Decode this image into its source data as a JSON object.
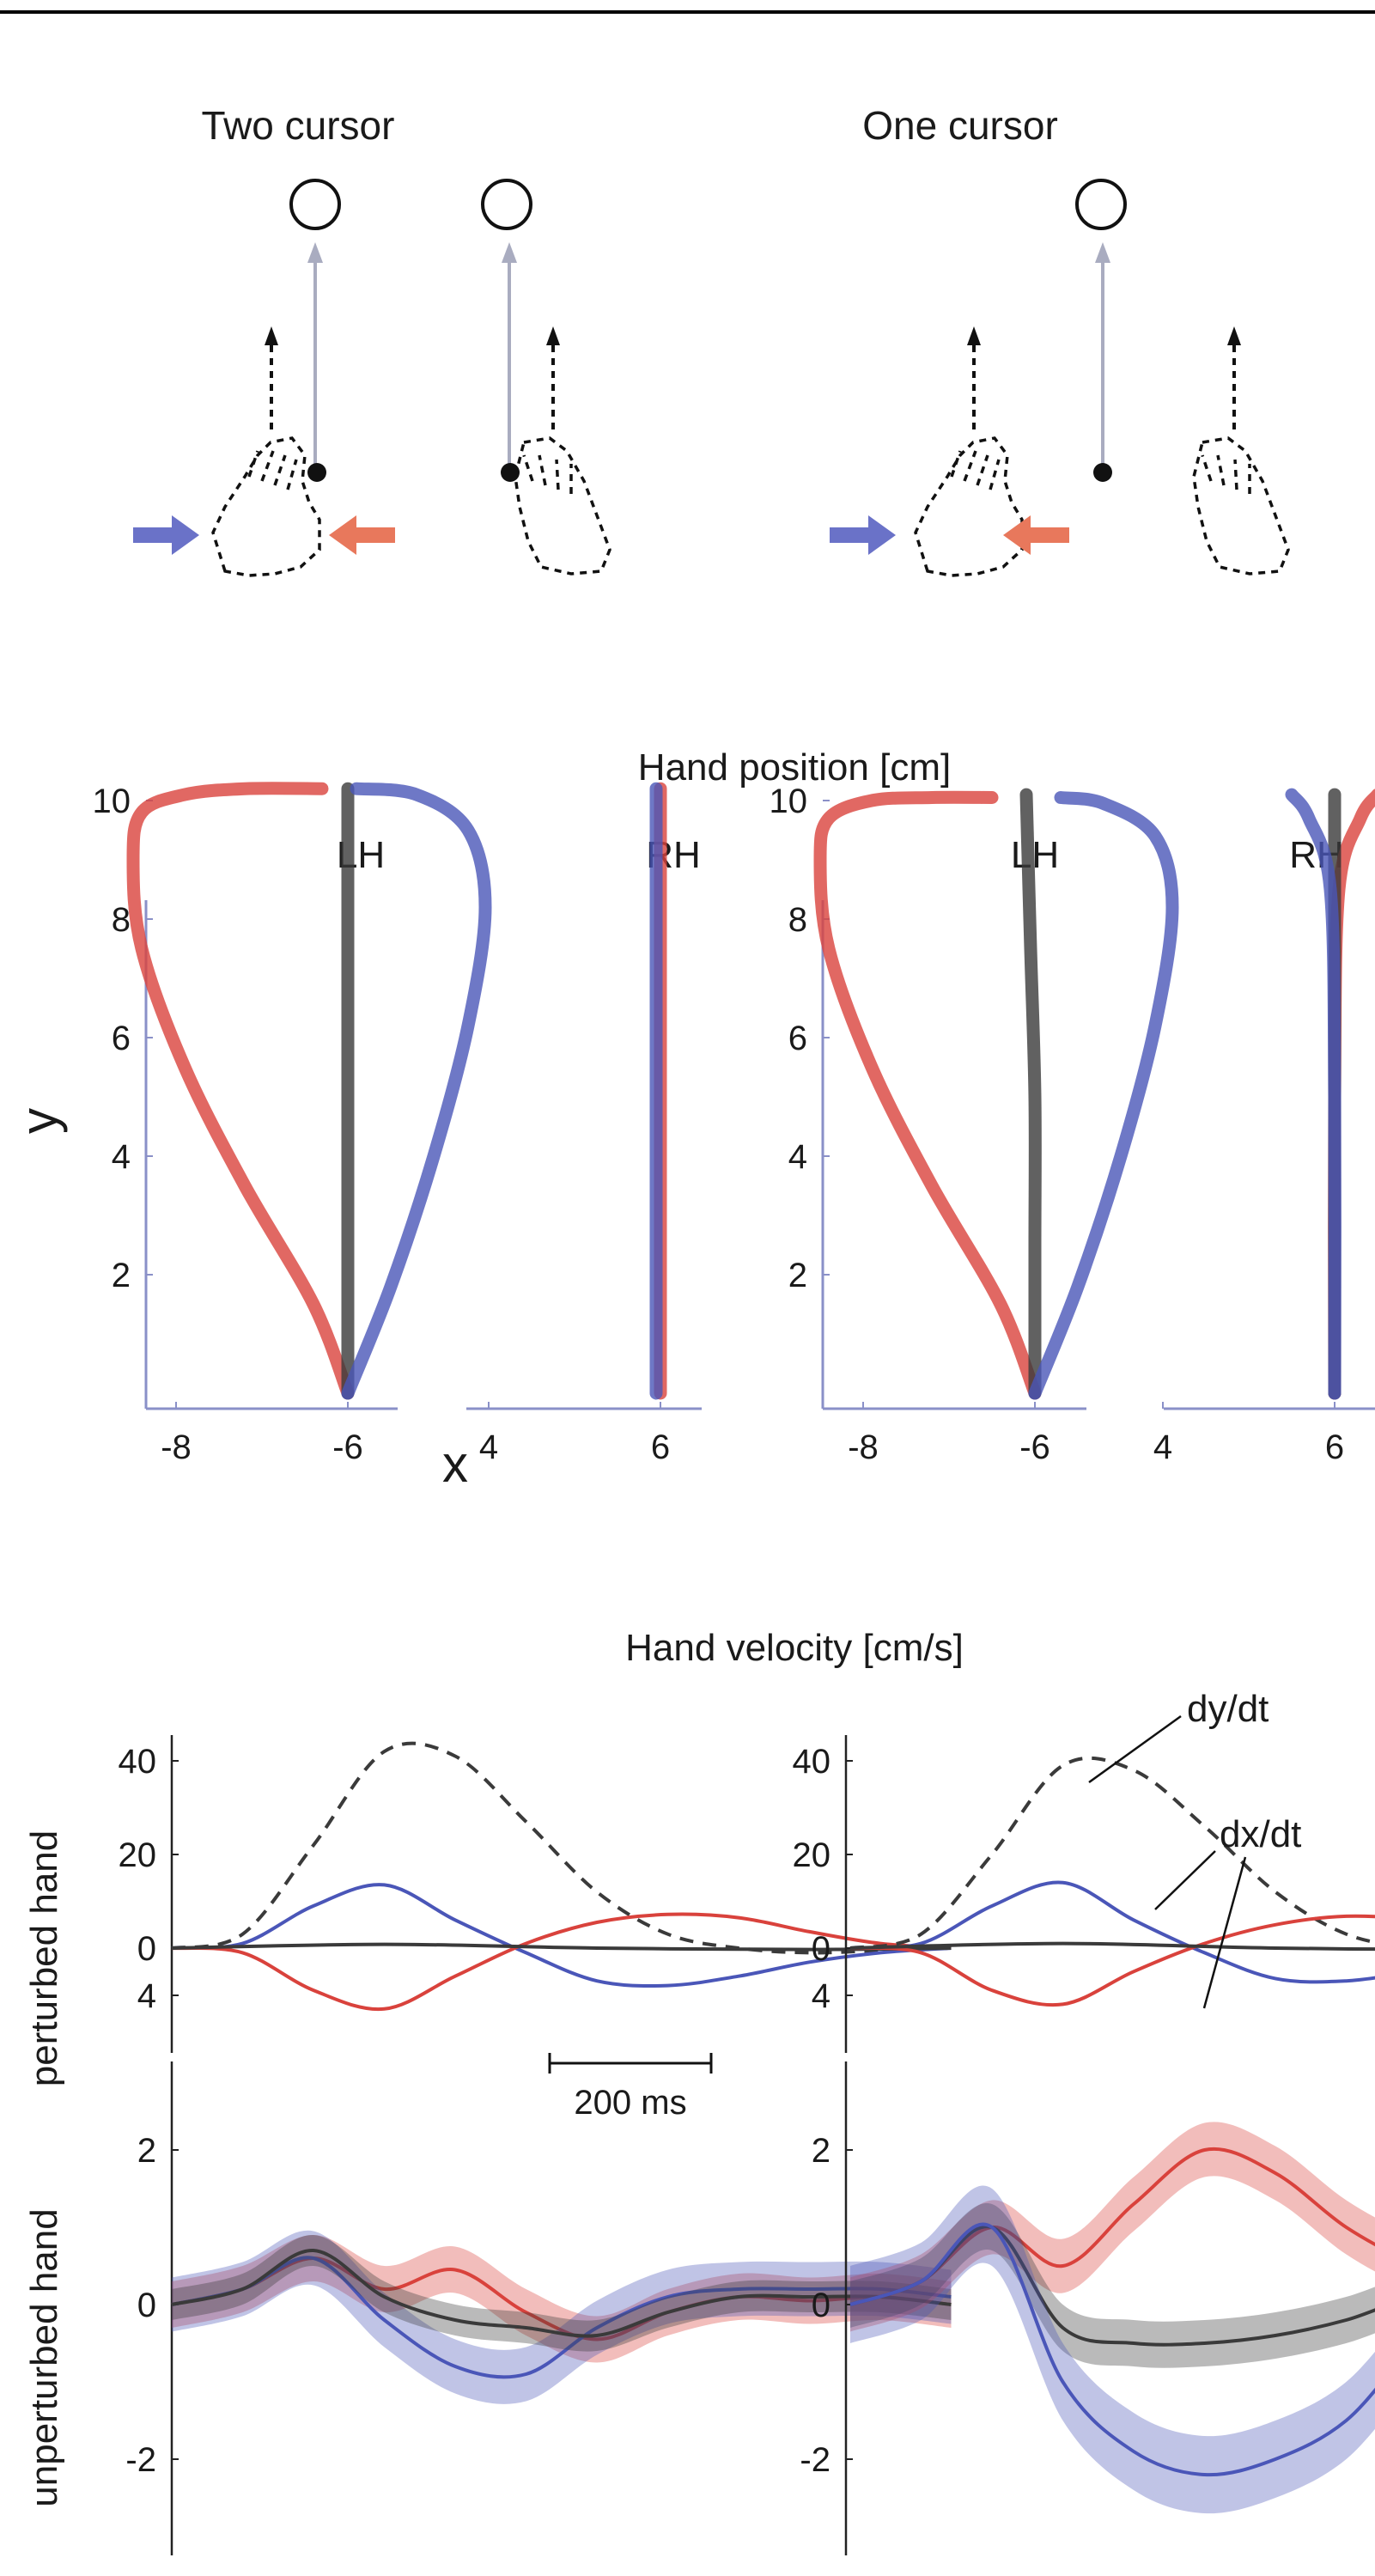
{
  "colors": {
    "red": "#d9423c",
    "blue": "#4a56b8",
    "black": "#3a3a3a",
    "axis": "#8a90c8",
    "arrow_gray": "#a9acc0"
  },
  "schematic": {
    "left_title": "Two cursor",
    "right_title": "One cursor",
    "icons": [
      "target-circle-icon",
      "hand-outline-icon",
      "force-arrow-icon"
    ]
  },
  "position_section": {
    "title": "Hand position [cm]",
    "xlabel": "x",
    "ylabel": "y"
  },
  "velocity_section": {
    "title": "Hand velocity [cm/s]",
    "ylabel_top": "perturbed hand",
    "ylabel_bottom": "unperturbed hand",
    "scale_bar": "200 ms",
    "annotation_dy": "dy/dt",
    "annotation_dx": "dx/dt"
  },
  "chart_data": [
    {
      "type": "scatter",
      "panel": "Hand position, two cursor",
      "subplot_labels": [
        "LH",
        "RH"
      ],
      "xticks_left": [
        -8,
        -6
      ],
      "xticks_right": [
        4,
        6
      ],
      "yticks": [
        2,
        4,
        6,
        8,
        10
      ],
      "ylim": [
        0,
        10.5
      ],
      "series": [
        {
          "color": "red",
          "hand": "LH",
          "x": [
            -6.0,
            -6.4,
            -7.2,
            -7.9,
            -8.4,
            -8.5,
            -8.4,
            -7.9,
            -7.2,
            -6.3
          ],
          "y": [
            0,
            1.5,
            3.5,
            5.5,
            7.5,
            9.0,
            9.8,
            10.1,
            10.2,
            10.2
          ]
        },
        {
          "color": "black",
          "hand": "LH",
          "x": [
            -6.0,
            -6.0,
            -6.0,
            -6.0,
            -6.0,
            -6.0
          ],
          "y": [
            0,
            2,
            4,
            6,
            8,
            10.2
          ]
        },
        {
          "color": "blue",
          "hand": "LH",
          "x": [
            -6.0,
            -5.5,
            -5.0,
            -4.6,
            -4.4,
            -4.6,
            -5.2,
            -5.9
          ],
          "y": [
            0,
            1.8,
            4.0,
            6.2,
            8.2,
            9.5,
            10.1,
            10.2
          ]
        },
        {
          "color": "red",
          "hand": "RH",
          "x": [
            6.0,
            6.0,
            6.0
          ],
          "y": [
            0,
            5,
            10.2
          ]
        },
        {
          "color": "blue",
          "hand": "RH",
          "x": [
            5.95,
            5.95,
            5.95
          ],
          "y": [
            0,
            5,
            10.2
          ]
        }
      ]
    },
    {
      "type": "scatter",
      "panel": "Hand position, one cursor",
      "subplot_labels": [
        "LH",
        "RH"
      ],
      "xticks_left": [
        -8,
        -6
      ],
      "xticks_right": [
        4,
        6
      ],
      "yticks": [
        2,
        4,
        6,
        8,
        10
      ],
      "ylim": [
        0,
        10.5
      ],
      "series": [
        {
          "color": "red",
          "hand": "LH",
          "x": [
            -6.0,
            -6.4,
            -7.2,
            -7.9,
            -8.4,
            -8.5,
            -8.4,
            -7.9,
            -7.2,
            -6.5
          ],
          "y": [
            0,
            1.5,
            3.5,
            5.5,
            7.5,
            9.0,
            9.7,
            10.0,
            10.05,
            10.05
          ]
        },
        {
          "color": "black",
          "hand": "LH",
          "x": [
            -6.0,
            -6.0,
            -6.0,
            -6.05,
            -6.1
          ],
          "y": [
            0,
            2.5,
            5,
            7.5,
            10.1
          ]
        },
        {
          "color": "blue",
          "hand": "LH",
          "x": [
            -6.0,
            -5.5,
            -5.0,
            -4.6,
            -4.4,
            -4.6,
            -5.2,
            -5.7
          ],
          "y": [
            0,
            1.8,
            4.0,
            6.2,
            8.2,
            9.4,
            9.95,
            10.05
          ]
        },
        {
          "color": "red",
          "hand": "RH",
          "x": [
            6.0,
            6.0,
            6.05,
            6.3,
            6.5
          ],
          "y": [
            0,
            5,
            8.5,
            9.7,
            10.1
          ]
        },
        {
          "color": "black",
          "hand": "RH",
          "x": [
            6.0,
            6.0,
            6.0
          ],
          "y": [
            0,
            5,
            10.1
          ]
        },
        {
          "color": "blue",
          "hand": "RH",
          "x": [
            6.0,
            6.0,
            5.95,
            5.7,
            5.5
          ],
          "y": [
            0,
            5,
            8.5,
            9.7,
            10.1
          ]
        }
      ]
    },
    {
      "type": "line",
      "panel": "Hand velocity, perturbed hand, two cursor",
      "x_unit": "ms",
      "xlim": [
        0,
        1100
      ],
      "yticks": [
        0,
        20,
        40
      ],
      "ylim": [
        -17,
        45
      ],
      "series": [
        {
          "color": "black",
          "style": "dashed",
          "x": [
            0,
            100,
            200,
            300,
            400,
            500,
            600,
            700,
            800,
            900,
            1000,
            1100
          ],
          "y": [
            0,
            3,
            22,
            42,
            41,
            27,
            12,
            3,
            0,
            -1,
            -0.5,
            0
          ]
        },
        {
          "color": "blue",
          "x": [
            0,
            100,
            200,
            300,
            400,
            500,
            600,
            700,
            800,
            900,
            1000,
            1100
          ],
          "y": [
            0,
            1,
            9,
            13.5,
            6,
            -1,
            -7,
            -8,
            -6,
            -3,
            -1,
            0
          ]
        },
        {
          "color": "red",
          "x": [
            0,
            100,
            200,
            300,
            400,
            500,
            600,
            700,
            800,
            900,
            1000,
            1100
          ],
          "y": [
            0,
            -1,
            -9,
            -13,
            -6,
            1,
            5.5,
            7.2,
            6.5,
            3.5,
            1,
            0
          ]
        },
        {
          "color": "black",
          "x": [
            0,
            300,
            600,
            900,
            1100
          ],
          "y": [
            0,
            0.8,
            0,
            -0.3,
            0
          ]
        }
      ]
    },
    {
      "type": "line",
      "panel": "Hand velocity, perturbed hand, one cursor",
      "x_unit": "ms",
      "xlim": [
        0,
        1100
      ],
      "yticks": [
        0,
        20,
        40
      ],
      "ylim": [
        -17,
        45
      ],
      "series": [
        {
          "color": "black",
          "style": "dashed",
          "x": [
            0,
            100,
            200,
            300,
            400,
            500,
            600,
            700,
            800,
            900,
            1000,
            1100
          ],
          "y": [
            0,
            3,
            20,
            39,
            38,
            26,
            12,
            3,
            0,
            -1,
            -0.5,
            0
          ]
        },
        {
          "color": "blue",
          "x": [
            0,
            100,
            200,
            300,
            400,
            500,
            600,
            700,
            800,
            900,
            1000,
            1100
          ],
          "y": [
            0,
            1,
            9,
            14,
            6,
            -1,
            -6.5,
            -7,
            -5,
            -3,
            -1,
            0
          ]
        },
        {
          "color": "red",
          "x": [
            0,
            100,
            200,
            300,
            400,
            500,
            600,
            700,
            800,
            900,
            1000,
            1100
          ],
          "y": [
            0,
            -1,
            -9,
            -12,
            -5,
            1,
            5,
            6.8,
            6,
            3.5,
            1,
            0
          ]
        },
        {
          "color": "black",
          "x": [
            0,
            300,
            600,
            900,
            1100
          ],
          "y": [
            0,
            1,
            0,
            -0.3,
            0
          ]
        }
      ]
    },
    {
      "type": "line",
      "panel": "Hand velocity, unperturbed hand, two cursor",
      "x_unit": "ms",
      "xlim": [
        0,
        1100
      ],
      "yticks": [
        -2,
        0,
        2,
        4
      ],
      "ylim": [
        -4,
        4
      ],
      "series": [
        {
          "color": "red",
          "x": [
            0,
            100,
            200,
            300,
            400,
            500,
            600,
            700,
            800,
            900,
            1000,
            1100
          ],
          "y": [
            0,
            0.2,
            0.6,
            0.2,
            0.45,
            -0.1,
            -0.45,
            -0.1,
            0.1,
            0.05,
            0.1,
            0
          ],
          "band": 0.3
        },
        {
          "color": "blue",
          "x": [
            0,
            100,
            200,
            300,
            400,
            500,
            600,
            700,
            800,
            900,
            1000,
            1100
          ],
          "y": [
            0,
            0.2,
            0.6,
            -0.2,
            -0.8,
            -0.9,
            -0.3,
            0.1,
            0.2,
            0.2,
            0.2,
            0.1
          ],
          "band": 0.35
        },
        {
          "color": "black",
          "x": [
            0,
            100,
            200,
            300,
            400,
            500,
            600,
            700,
            800,
            900,
            1000,
            1100
          ],
          "y": [
            0,
            0.2,
            0.7,
            0.1,
            -0.2,
            -0.3,
            -0.4,
            -0.1,
            0.1,
            0.1,
            0.1,
            0
          ],
          "band": 0.2
        }
      ]
    },
    {
      "type": "line",
      "panel": "Hand velocity, unperturbed hand, one cursor",
      "x_unit": "ms",
      "xlim": [
        0,
        1100
      ],
      "yticks": [
        -2,
        0,
        2,
        4
      ],
      "ylim": [
        -4,
        4
      ],
      "series": [
        {
          "color": "red",
          "x": [
            0,
            100,
            200,
            300,
            400,
            500,
            600,
            700,
            800,
            900,
            1000,
            1100
          ],
          "y": [
            0,
            0.3,
            1.0,
            0.5,
            1.3,
            2.0,
            1.7,
            1.0,
            0.5,
            0.1,
            -0.1,
            -0.2
          ],
          "band": 0.35
        },
        {
          "color": "black",
          "x": [
            0,
            100,
            200,
            300,
            400,
            500,
            600,
            700,
            800,
            900,
            1000,
            1100
          ],
          "y": [
            0,
            0.3,
            1.0,
            -0.3,
            -0.5,
            -0.5,
            -0.4,
            -0.2,
            0.1,
            0.1,
            0.05,
            0
          ],
          "band": 0.3
        },
        {
          "color": "blue",
          "x": [
            0,
            100,
            200,
            300,
            400,
            500,
            600,
            700,
            800,
            900,
            1000,
            1100
          ],
          "y": [
            0,
            0.3,
            1.0,
            -1.0,
            -1.9,
            -2.2,
            -2.0,
            -1.5,
            -0.5,
            0.1,
            0.05,
            0
          ],
          "band": 0.5
        }
      ]
    }
  ]
}
